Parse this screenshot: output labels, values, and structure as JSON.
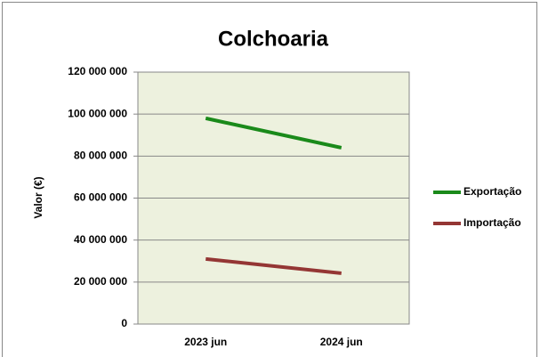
{
  "chart_data": {
    "type": "line",
    "title": "Colchoaria",
    "y_label": "Valor (€)",
    "categories": [
      "2023 jun",
      "2024 jun"
    ],
    "series": [
      {
        "name": "Exportação",
        "color": "#1a8a1a",
        "values": [
          98000000,
          84000000
        ]
      },
      {
        "name": "Importação",
        "color": "#943634",
        "values": [
          31000000,
          24200000
        ]
      }
    ],
    "ylim": [
      0,
      120000000
    ],
    "yticks": [
      0,
      {
        "value": 20000000,
        "label": "20 000 000"
      },
      {
        "value": 40000000,
        "label": "40 000 000"
      },
      {
        "value": 60000000,
        "label": "60 000 000"
      },
      {
        "value": 80000000,
        "label": "80 000 000"
      },
      {
        "value": 100000000,
        "label": "100 000 000"
      },
      {
        "value": 120000000,
        "label": "120 000 000"
      }
    ],
    "grid": true,
    "legend": "right"
  }
}
